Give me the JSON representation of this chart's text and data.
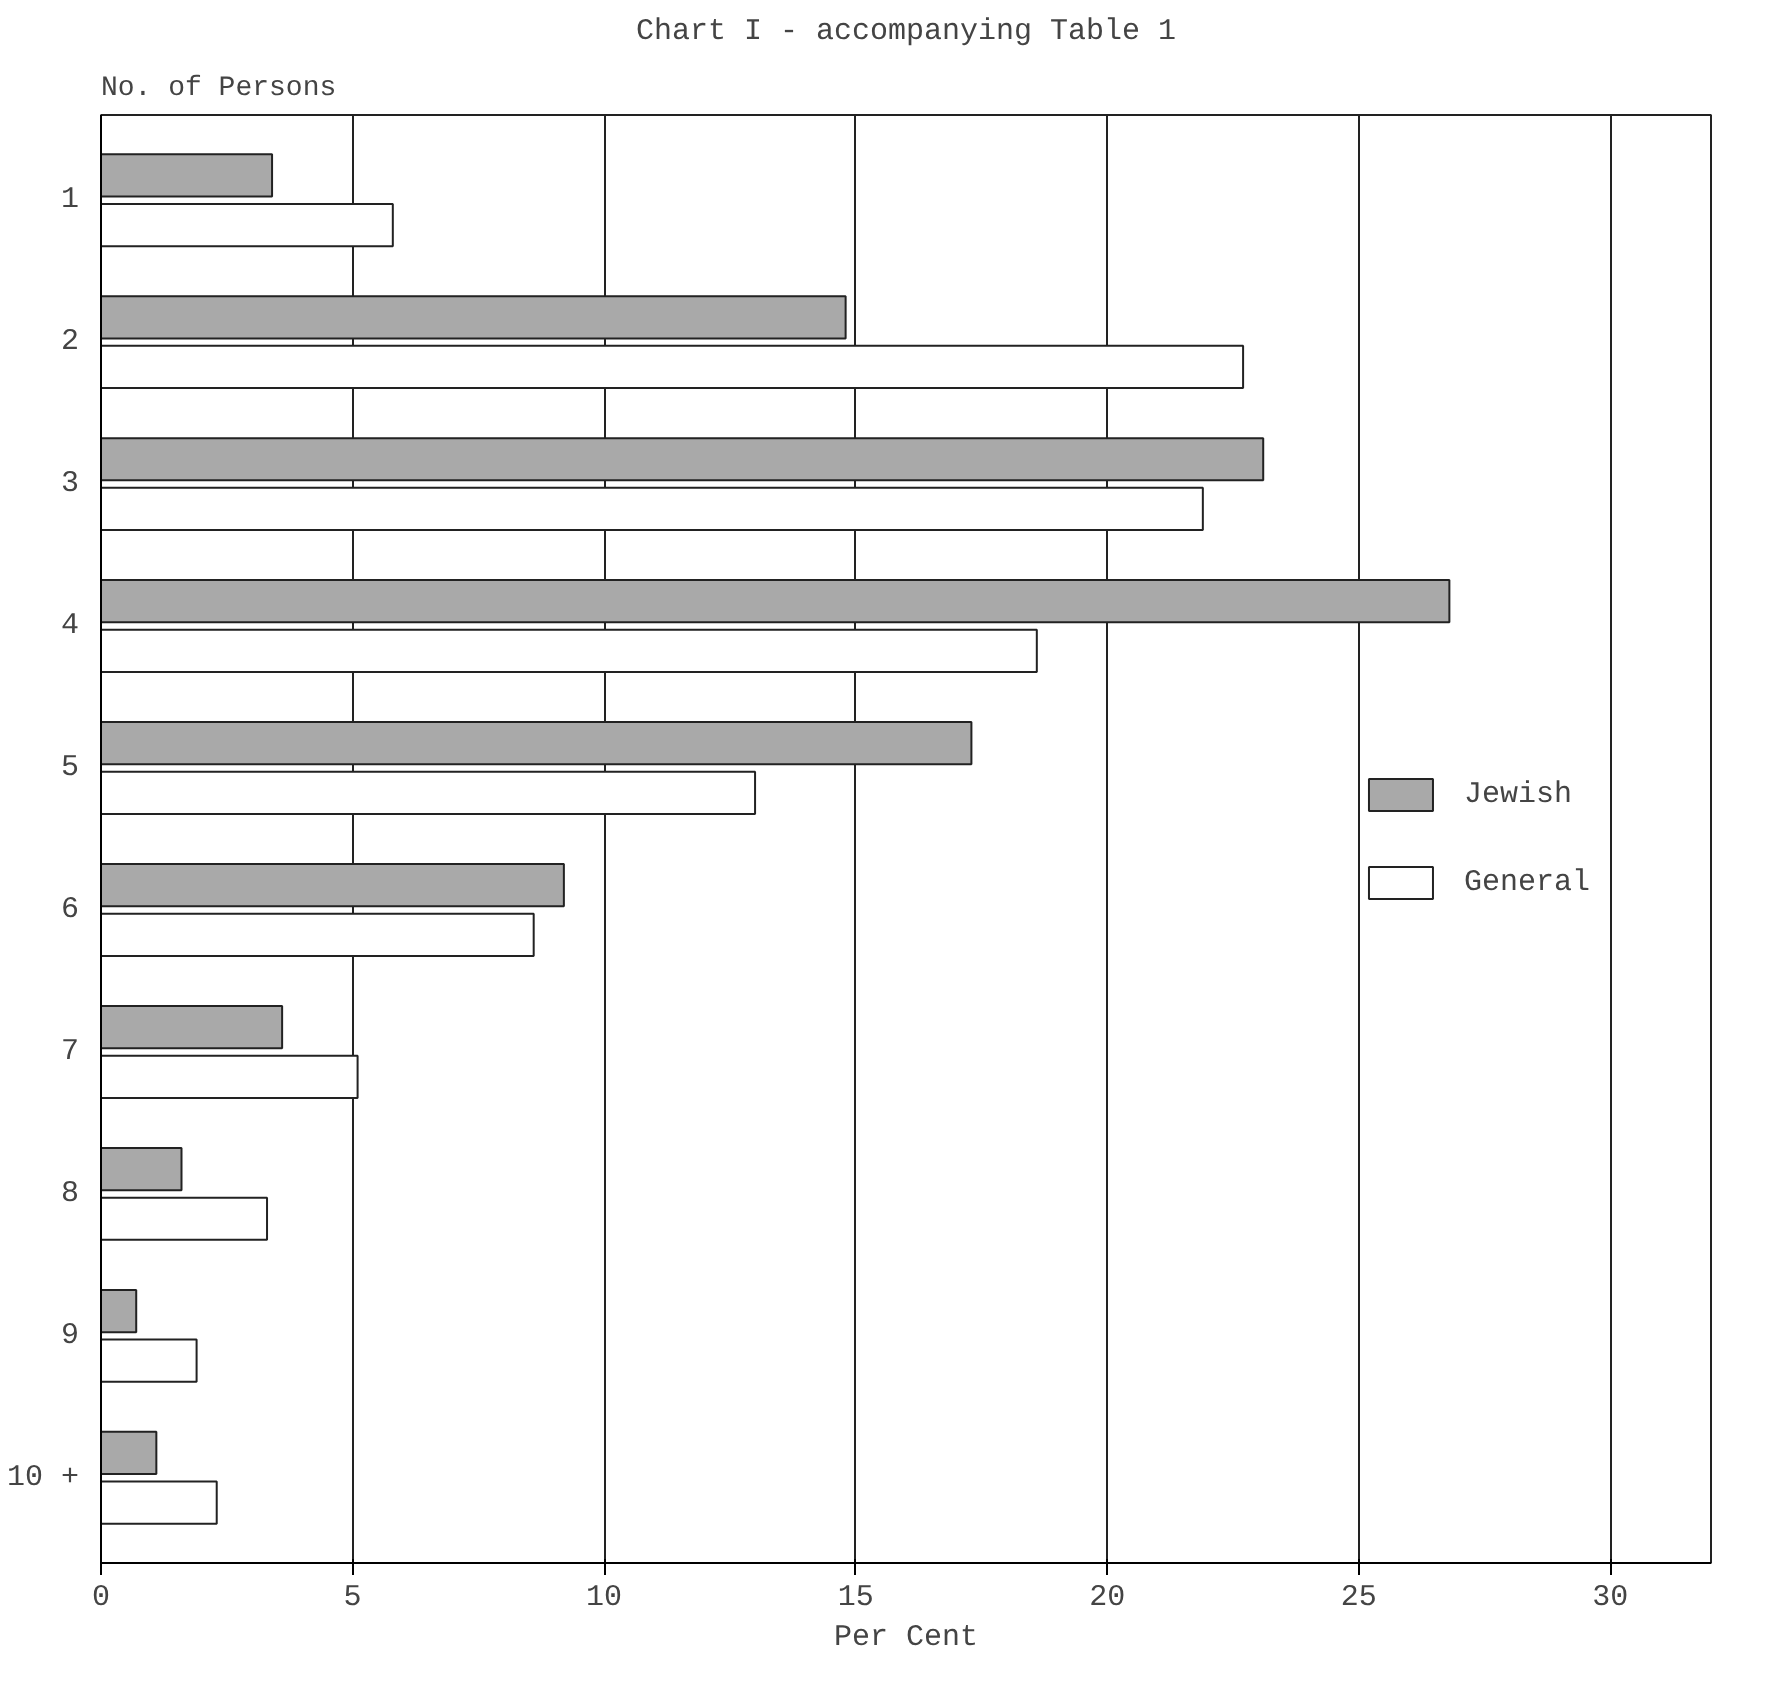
{
  "chart_data": {
    "type": "bar",
    "orientation": "horizontal",
    "title": "Chart I - accompanying Table 1",
    "xlabel": "Per Cent",
    "ylabel": "No. of Persons",
    "categories": [
      "1",
      "2",
      "3",
      "4",
      "5",
      "6",
      "7",
      "8",
      "9",
      "10 +"
    ],
    "series": [
      {
        "name": "Jewish",
        "color": "#a9a9a9",
        "values": [
          3.4,
          14.8,
          23.1,
          26.8,
          17.3,
          9.2,
          3.6,
          1.6,
          0.7,
          1.1
        ]
      },
      {
        "name": "General",
        "color": "#ffffff",
        "values": [
          5.8,
          22.7,
          21.9,
          18.6,
          13.0,
          8.6,
          5.1,
          3.3,
          1.9,
          2.3
        ]
      }
    ],
    "xlim": [
      0,
      32
    ],
    "xticks": [
      0,
      5,
      10,
      15,
      20,
      25,
      30
    ],
    "grid": "x",
    "legend": "right"
  }
}
